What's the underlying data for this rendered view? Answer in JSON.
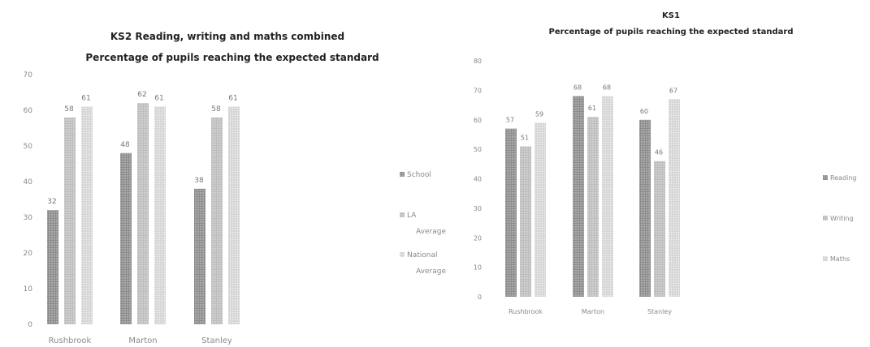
{
  "chart_data": [
    {
      "type": "bar",
      "title_lines": [
        "KS2 Reading, writing and maths combined",
        "Percentage of pupils reaching the expected standard"
      ],
      "categories": [
        "Rushbrook",
        "Marton",
        "Stanley"
      ],
      "ylim": [
        0,
        70
      ],
      "yticks": [
        "0",
        "10",
        "20",
        "30",
        "40",
        "50",
        "60",
        "70"
      ],
      "grid": false,
      "legend_position": "right",
      "series": [
        {
          "name": "School",
          "legend_lines": [
            "School"
          ],
          "values": [
            32,
            48,
            38
          ],
          "color": "#9a9a9a"
        },
        {
          "name": "LA Average",
          "legend_lines": [
            "LA",
            "Average"
          ],
          "values": [
            58,
            62,
            58
          ],
          "color": "#c2c2c2"
        },
        {
          "name": "National Average",
          "legend_lines": [
            "National",
            "Average"
          ],
          "values": [
            61,
            61,
            61
          ],
          "color": "#dcdcdc"
        }
      ]
    },
    {
      "type": "bar",
      "title_lines": [
        "KS1",
        "Percentage of pupils reaching the expected standard"
      ],
      "categories": [
        "Rushbrook",
        "Marton",
        "Stanley"
      ],
      "ylim": [
        0,
        80
      ],
      "yticks": [
        "0",
        "10",
        "20",
        "30",
        "40",
        "50",
        "60",
        "70",
        "80"
      ],
      "grid": false,
      "legend_position": "right",
      "series": [
        {
          "name": "Reading",
          "legend_lines": [
            "Reading"
          ],
          "values": [
            57,
            68,
            60
          ],
          "color": "#9a9a9a"
        },
        {
          "name": "Writing",
          "legend_lines": [
            "Writing"
          ],
          "values": [
            51,
            61,
            46
          ],
          "color": "#b8b8b8"
        },
        {
          "name": "Maths",
          "legend_lines": [
            "Maths"
          ],
          "values": [
            59,
            68,
            67
          ],
          "color": "#d2d2d2"
        }
      ]
    }
  ]
}
